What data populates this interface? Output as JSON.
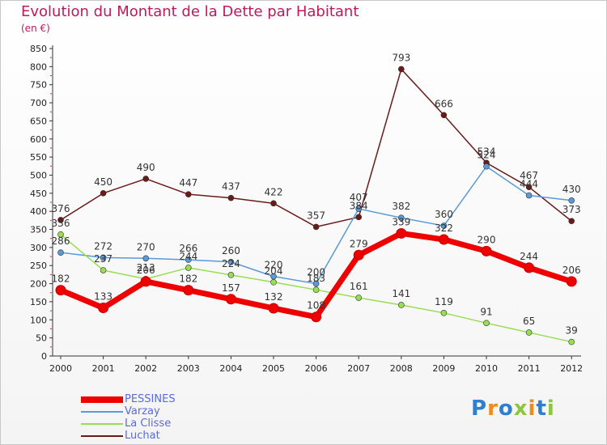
{
  "title": "Evolution du Montant de la Dette par Habitant",
  "unit": "(en €)",
  "logo": "Proxiti",
  "chart_data": {
    "type": "line",
    "x": [
      "2000",
      "2001",
      "2002",
      "2003",
      "2004",
      "2005",
      "2006",
      "2007",
      "2008",
      "2009",
      "2010",
      "2011",
      "2012"
    ],
    "ylim": [
      0,
      850
    ],
    "yticks": [
      0,
      50,
      100,
      150,
      200,
      250,
      300,
      350,
      400,
      450,
      500,
      550,
      600,
      650,
      700,
      750,
      800,
      850
    ],
    "grid": false,
    "legend_position": "bottom-left",
    "series": [
      {
        "name": "PESSINES",
        "color": "#ee0000",
        "values": [
          182,
          133,
          206,
          182,
          157,
          132,
          108,
          279,
          339,
          322,
          290,
          244,
          206
        ]
      },
      {
        "name": "Varzay",
        "color": "#5a9ad8",
        "values": [
          286,
          272,
          270,
          266,
          260,
          220,
          200,
          407,
          382,
          360,
          524,
          444,
          430
        ]
      },
      {
        "name": "La Clisse",
        "color": "#99dd55",
        "values": [
          336,
          237,
          213,
          244,
          224,
          204,
          183,
          161,
          141,
          119,
          91,
          65,
          39
        ]
      },
      {
        "name": "Luchat",
        "color": "#6b1a1a",
        "values": [
          376,
          450,
          490,
          447,
          437,
          422,
          357,
          384,
          793,
          666,
          534,
          467,
          373
        ]
      }
    ]
  }
}
